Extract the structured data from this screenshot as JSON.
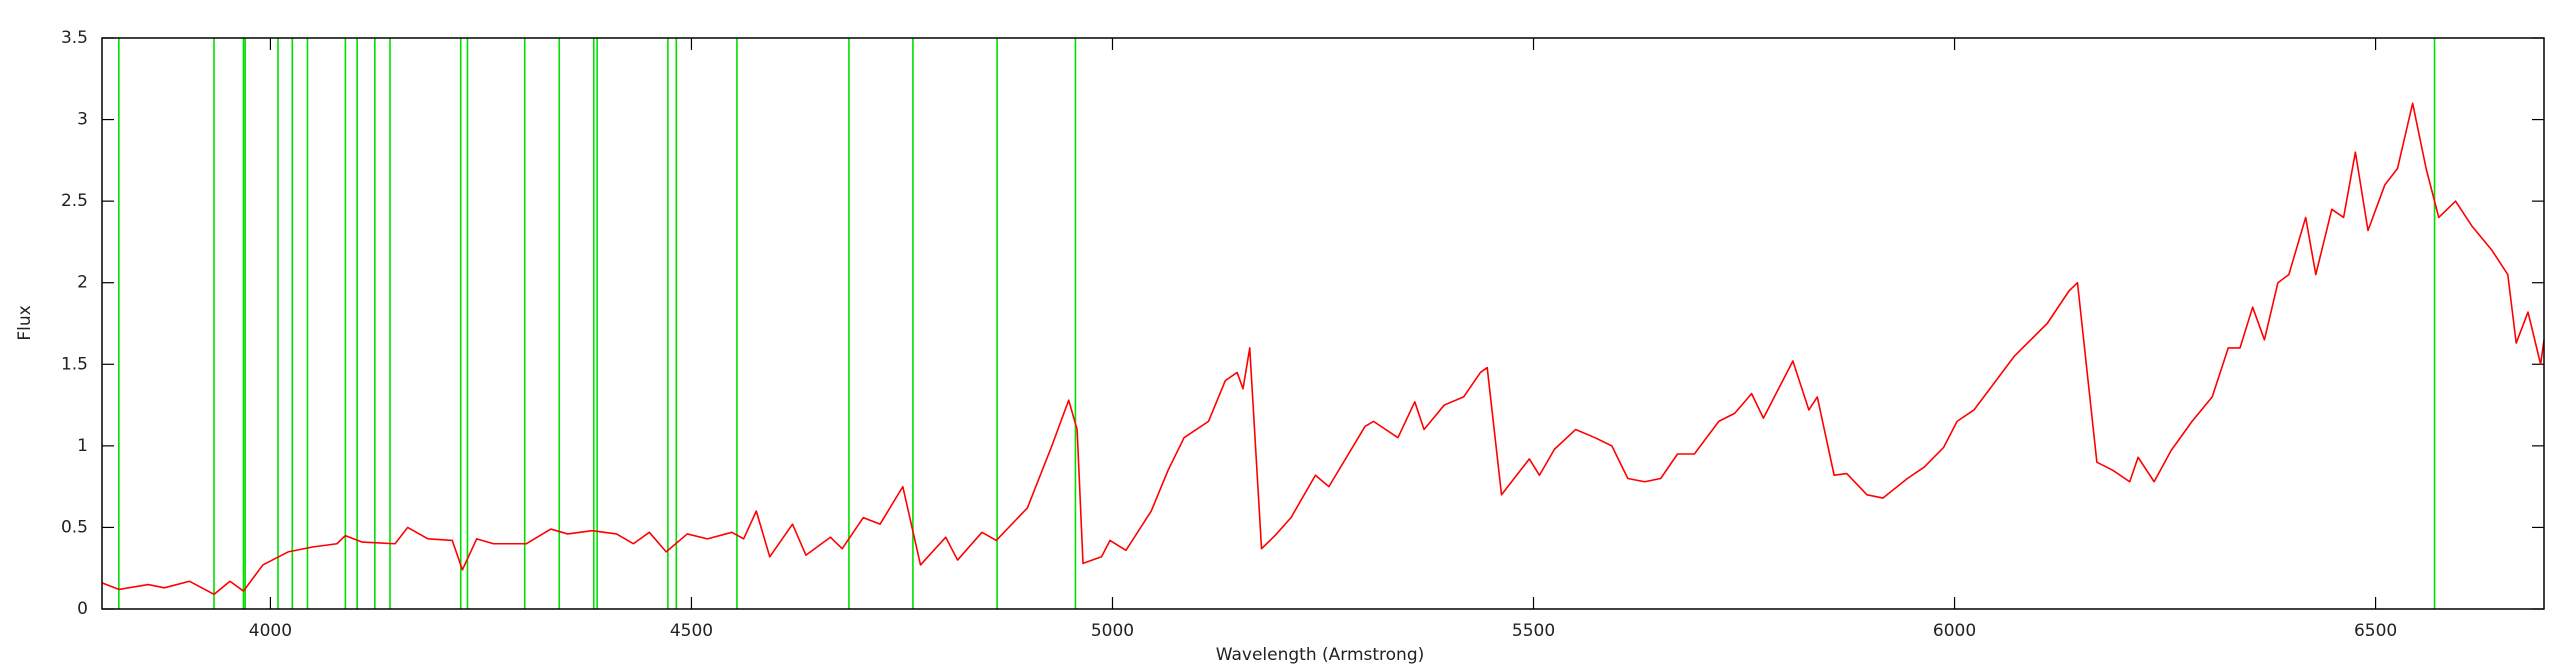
{
  "chart_data": {
    "type": "line",
    "x_label": "Wavelength (Armstrong)",
    "y_label": "Flux",
    "xlim": [
      3800,
      6700
    ],
    "ylim": [
      0,
      3.5
    ],
    "xticks": [
      4000,
      4500,
      5000,
      5500,
      6000,
      6500
    ],
    "yticks": [
      0,
      0.5,
      1,
      1.5,
      2,
      2.5,
      3,
      3.5
    ],
    "grid": false,
    "x": [
      3800,
      3820,
      3855,
      3874,
      3904,
      3933,
      3952,
      3968,
      3991,
      4021,
      4050,
      4079,
      4089,
      4109,
      4148,
      4163,
      4187,
      4216,
      4228,
      4245,
      4265,
      4304,
      4333,
      4353,
      4382,
      4411,
      4431,
      4450,
      4470,
      4495,
      4519,
      4548,
      4562,
      4577,
      4593,
      4620,
      4636,
      4665,
      4679,
      4704,
      4724,
      4751,
      4772,
      4802,
      4816,
      4845,
      4862,
      4899,
      4928,
      4948,
      4958,
      4965,
      4987,
      4997,
      5016,
      5046,
      5066,
      5085,
      5114,
      5134,
      5148,
      5155,
      5163,
      5177,
      5193,
      5212,
      5241,
      5257,
      5300,
      5310,
      5339,
      5359,
      5370,
      5394,
      5417,
      5437,
      5445,
      5462,
      5495,
      5507,
      5525,
      5550,
      5573,
      5593,
      5612,
      5632,
      5651,
      5671,
      5691,
      5720,
      5739,
      5759,
      5773,
      5808,
      5827,
      5837,
      5857,
      5872,
      5896,
      5915,
      5944,
      5964,
      5987,
      6003,
      6023,
      6042,
      6071,
      6110,
      6136,
      6146,
      6169,
      6188,
      6208,
      6218,
      6237,
      6257,
      6282,
      6306,
      6325,
      6339,
      6354,
      6368,
      6384,
      6397,
      6417,
      6429,
      6448,
      6462,
      6476,
      6491,
      6511,
      6526,
      6544,
      6560,
      6575,
      6595,
      6614,
      6638,
      6657,
      6667,
      6681,
      6696,
      6700
    ],
    "series": [
      {
        "color": "#ff0000",
        "values": [
          0.16,
          0.12,
          0.15,
          0.13,
          0.17,
          0.09,
          0.17,
          0.11,
          0.27,
          0.35,
          0.38,
          0.4,
          0.45,
          0.41,
          0.4,
          0.5,
          0.43,
          0.42,
          0.24,
          0.43,
          0.4,
          0.4,
          0.49,
          0.46,
          0.48,
          0.46,
          0.4,
          0.47,
          0.35,
          0.46,
          0.43,
          0.47,
          0.43,
          0.6,
          0.32,
          0.52,
          0.33,
          0.44,
          0.37,
          0.56,
          0.52,
          0.75,
          0.27,
          0.44,
          0.3,
          0.47,
          0.42,
          0.62,
          1.0,
          1.28,
          1.1,
          0.28,
          0.32,
          0.42,
          0.36,
          0.6,
          0.85,
          1.05,
          1.15,
          1.4,
          1.45,
          1.35,
          1.6,
          0.37,
          0.45,
          0.56,
          0.82,
          0.75,
          1.12,
          1.15,
          1.05,
          1.27,
          1.1,
          1.25,
          1.3,
          1.45,
          1.48,
          0.7,
          0.92,
          0.82,
          0.98,
          1.1,
          1.05,
          1.0,
          0.8,
          0.78,
          0.8,
          0.95,
          0.95,
          1.15,
          1.2,
          1.32,
          1.17,
          1.52,
          1.22,
          1.3,
          0.82,
          0.83,
          0.7,
          0.68,
          0.8,
          0.87,
          0.99,
          1.15,
          1.22,
          1.35,
          1.55,
          1.75,
          1.95,
          2.0,
          0.9,
          0.85,
          0.78,
          0.93,
          0.78,
          0.97,
          1.15,
          1.3,
          1.6,
          1.6,
          1.85,
          1.65,
          2.0,
          2.05,
          2.4,
          2.05,
          2.45,
          2.4,
          2.8,
          2.32,
          2.6,
          2.7,
          3.1,
          2.7,
          2.4,
          2.5,
          2.35,
          2.2,
          2.05,
          1.63,
          1.82,
          1.5,
          1.65
        ]
      }
    ],
    "vlines": {
      "color": "#00e000",
      "x": [
        3820,
        3933,
        3968,
        3970,
        4009,
        4026,
        4044,
        4089,
        4103,
        4124,
        4142,
        4226,
        4234,
        4302,
        4343,
        4384,
        4388,
        4472,
        4482,
        4554,
        4687,
        4763,
        4863,
        4956,
        6570
      ]
    }
  }
}
